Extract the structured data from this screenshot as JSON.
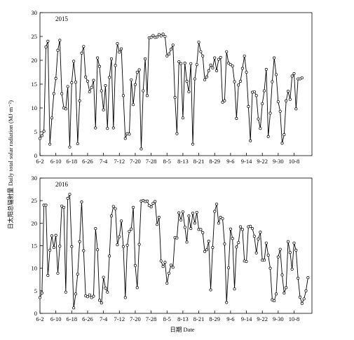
{
  "chart_data": {
    "type": "line",
    "ylabel": "日太阳总辐射量 Daily total solar radiation (MJ·m⁻²)",
    "xlabel": "日期 Date",
    "ylim": [
      0,
      30
    ],
    "yticks": [
      0,
      5,
      10,
      15,
      20,
      25,
      30
    ],
    "xticks": [
      "6-2",
      "6-10",
      "6-18",
      "6-26",
      "7-4",
      "7-12",
      "7-20",
      "7-28",
      "8-5",
      "8-13",
      "8-21",
      "8-29",
      "9-6",
      "9-14",
      "9-22",
      "9-30",
      "10-8"
    ],
    "x_range_days": [
      0,
      137
    ],
    "tick_step_days": 8,
    "marker": "open-circle",
    "panels": [
      {
        "label": "2015",
        "values": [
          3.6,
          4.2,
          5.1,
          22.8,
          24.0,
          2.4,
          7.9,
          13.0,
          16.2,
          22.1,
          24.2,
          13.0,
          10.0,
          9.8,
          14.5,
          1.8,
          15.3,
          19.8,
          15.4,
          2.5,
          11.5,
          21.5,
          22.9,
          16.5,
          15.6,
          13.4,
          14.3,
          15.8,
          5.8,
          20.5,
          18.7,
          13.6,
          9.6,
          14.7,
          5.7,
          16.4,
          20.3,
          5.8,
          18.9,
          23.5,
          21.7,
          22.4,
          12.6,
          3.6,
          4.6,
          4.5,
          15.9,
          10.7,
          14.9,
          17.5,
          18.0,
          1.4,
          13.6,
          20.3,
          12.6,
          24.7,
          24.8,
          25.2,
          24.8,
          24.9,
          25.4,
          25.1,
          25.5,
          25.0,
          20.9,
          21.3,
          22.3,
          23.2,
          12.2,
          4.6,
          19.7,
          19.3,
          7.9,
          19.4,
          15.6,
          13.4,
          19.3,
          2.4,
          16.1,
          19.1,
          23.8,
          21.8,
          20.9,
          15.9,
          16.5,
          17.8,
          19.0,
          18.4,
          20.5,
          17.8,
          20.2,
          20.6,
          11.2,
          11.5,
          21.8,
          19.4,
          19.1,
          18.8,
          15.5,
          7.8,
          14.8,
          15.6,
          18.3,
          20.9,
          17.5,
          10.3,
          3.1,
          13.3,
          13.4,
          12.6,
          7.7,
          5.7,
          10.9,
          13.6,
          18.1,
          4.0,
          8.9,
          15.5,
          20.5,
          17.0,
          11.3,
          9.3,
          2.6,
          4.4,
          11.5,
          13.5,
          11.8,
          16.7,
          17.2,
          9.8,
          16.1,
          16.1,
          16.3
        ]
      },
      {
        "label": "2016",
        "values": [
          3.5,
          4.5,
          24.0,
          24.0,
          8.4,
          14.0,
          17.2,
          14.6,
          17.3,
          8.9,
          14.9,
          23.8,
          23.5,
          4.7,
          25.5,
          26.4,
          14.8,
          1.2,
          4.3,
          8.7,
          15.9,
          24.7,
          13.9,
          3.9,
          3.7,
          4.1,
          3.5,
          3.8,
          18.8,
          14.1,
          2.9,
          2.3,
          8.0,
          5.6,
          4.7,
          12.7,
          21.6,
          23.7,
          23.2,
          15.2,
          17.0,
          20.5,
          14.8,
          3.5,
          15.1,
          18.2,
          18.7,
          23.5,
          10.6,
          5.7,
          15.3,
          24.9,
          25.0,
          24.8,
          24.9,
          23.9,
          23.6,
          24.4,
          24.8,
          19.7,
          21.3,
          11.6,
          10.4,
          11.3,
          6.7,
          8.9,
          10.7,
          10.2,
          16.8,
          16.7,
          22.3,
          20.7,
          22.5,
          19.1,
          15.8,
          21.6,
          18.8,
          22.2,
          20.0,
          22.4,
          18.6,
          18.6,
          17.9,
          13.7,
          14.1,
          16.0,
          5.2,
          14.6,
          22.6,
          24.2,
          20.0,
          21.3,
          21.0,
          15.4,
          2.4,
          10.1,
          18.7,
          16.6,
          5.4,
          14.7,
          15.7,
          19.2,
          18.6,
          11.6,
          11.5,
          19.2,
          19.3,
          18.8,
          17.1,
          13.4,
          16.5,
          18.0,
          11.8,
          11.8,
          15.6,
          12.9,
          10.0,
          3.0,
          2.8,
          4.3,
          12.5,
          14.2,
          8.5,
          4.5,
          5.7,
          15.9,
          13.5,
          9.8,
          15.6,
          14.0,
          7.8,
          3.6,
          2.2,
          3.2,
          5.0,
          7.9
        ]
      }
    ]
  }
}
